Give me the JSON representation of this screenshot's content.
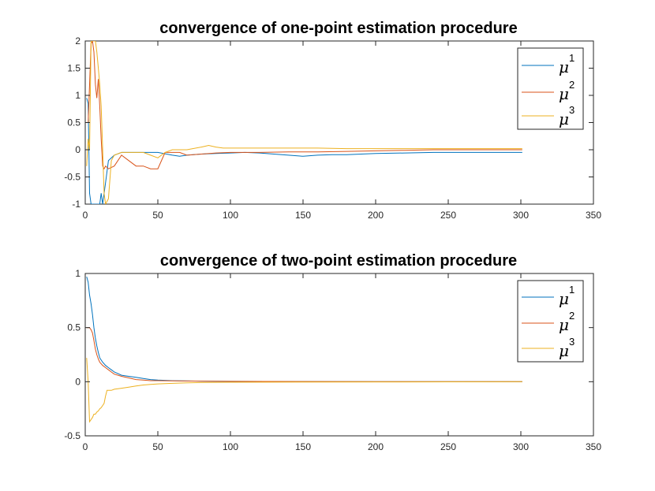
{
  "chart_data": [
    {
      "type": "line",
      "title": "convergence of one-point estimation procedure",
      "xlabel": "",
      "ylabel": "",
      "xlim": [
        0,
        350
      ],
      "ylim": [
        -1,
        2
      ],
      "xticks": [
        "0",
        "50",
        "100",
        "150",
        "200",
        "250",
        "300",
        "350"
      ],
      "yticks": [
        "-1",
        "-0.5",
        "0",
        "0.5",
        "1",
        "1.5",
        "2"
      ],
      "grid": false,
      "legend": "top-right",
      "series": [
        {
          "name": "μ",
          "sup": "1",
          "color": "#0072bd",
          "x": [
            1,
            2,
            3,
            4,
            5,
            6,
            7,
            8,
            9,
            10,
            11,
            12,
            14,
            16,
            20,
            25,
            30,
            35,
            40,
            50,
            60,
            65,
            70,
            80,
            90,
            100,
            110,
            120,
            130,
            140,
            150,
            160,
            170,
            180,
            190,
            200,
            220,
            240,
            260,
            280,
            301
          ],
          "y": [
            0.95,
            0.85,
            -0.8,
            -1,
            -1,
            -1,
            -1,
            -1,
            -1,
            -1,
            -0.8,
            -1,
            -0.6,
            -0.2,
            -0.1,
            -0.05,
            -0.05,
            -0.05,
            -0.05,
            -0.05,
            -0.1,
            -0.12,
            -0.1,
            -0.08,
            -0.07,
            -0.06,
            -0.05,
            -0.06,
            -0.08,
            -0.1,
            -0.12,
            -0.1,
            -0.09,
            -0.09,
            -0.08,
            -0.07,
            -0.06,
            -0.05,
            -0.05,
            -0.05,
            -0.05
          ]
        },
        {
          "name": "μ",
          "sup": "2",
          "color": "#d95319",
          "x": [
            1,
            2,
            3,
            4,
            5,
            6,
            7,
            8,
            9,
            10,
            11,
            12,
            13,
            14,
            16,
            20,
            25,
            30,
            35,
            40,
            45,
            50,
            55,
            60,
            65,
            70,
            80,
            90,
            100,
            120,
            140,
            160,
            180,
            200,
            220,
            240,
            260,
            280,
            301
          ],
          "y": [
            0.5,
            0.5,
            1.2,
            1.95,
            2,
            1.8,
            1.2,
            0.95,
            1.3,
            0.8,
            0.2,
            -0.3,
            -0.35,
            -0.3,
            -0.35,
            -0.3,
            -0.1,
            -0.2,
            -0.3,
            -0.3,
            -0.35,
            -0.35,
            -0.05,
            -0.05,
            -0.05,
            -0.1,
            -0.08,
            -0.06,
            -0.05,
            -0.05,
            -0.04,
            -0.04,
            -0.03,
            -0.02,
            -0.01,
            0,
            0,
            0,
            0
          ]
        },
        {
          "name": "μ",
          "sup": "3",
          "color": "#edb120",
          "x": [
            1,
            2,
            3,
            4,
            5,
            6,
            7,
            8,
            9,
            10,
            11,
            12,
            13,
            14,
            16,
            18,
            20,
            25,
            30,
            35,
            40,
            45,
            50,
            55,
            60,
            65,
            70,
            80,
            85,
            90,
            95,
            100,
            120,
            140,
            160,
            180,
            200,
            220,
            240,
            260,
            280,
            301
          ],
          "y": [
            -0.3,
            0.2,
            0,
            2,
            2,
            2,
            2,
            1.8,
            1.5,
            1.2,
            0.8,
            0,
            -0.8,
            -1,
            -0.9,
            -0.2,
            -0.1,
            -0.05,
            -0.05,
            -0.05,
            -0.05,
            -0.1,
            -0.15,
            -0.05,
            0,
            0,
            0,
            0.05,
            0.08,
            0.05,
            0.03,
            0.03,
            0.03,
            0.03,
            0.03,
            0.02,
            0.02,
            0.02,
            0.02,
            0.02,
            0.02,
            0.02
          ]
        }
      ]
    },
    {
      "type": "line",
      "title": "convergence of two-point estimation procedure",
      "xlabel": "",
      "ylabel": "",
      "xlim": [
        0,
        350
      ],
      "ylim": [
        -0.5,
        1
      ],
      "xticks": [
        "0",
        "50",
        "100",
        "150",
        "200",
        "250",
        "300",
        "350"
      ],
      "yticks": [
        "-0.5",
        "0",
        "0.5",
        "1"
      ],
      "grid": false,
      "legend": "top-right",
      "series": [
        {
          "name": "μ",
          "sup": "1",
          "color": "#0072bd",
          "x": [
            1,
            2,
            3,
            4,
            5,
            6,
            7,
            8,
            9,
            10,
            12,
            14,
            16,
            18,
            20,
            25,
            30,
            35,
            40,
            45,
            50,
            60,
            80,
            100,
            150,
            200,
            250,
            301
          ],
          "y": [
            0.97,
            0.92,
            0.8,
            0.72,
            0.62,
            0.5,
            0.4,
            0.33,
            0.27,
            0.22,
            0.18,
            0.15,
            0.13,
            0.11,
            0.09,
            0.06,
            0.05,
            0.04,
            0.03,
            0.02,
            0.015,
            0.01,
            0.005,
            0.003,
            0.002,
            0.001,
            0.001,
            0
          ]
        },
        {
          "name": "μ",
          "sup": "2",
          "color": "#d95319",
          "x": [
            1,
            2,
            3,
            4,
            5,
            6,
            7,
            8,
            9,
            10,
            12,
            14,
            16,
            18,
            20,
            25,
            30,
            35,
            40,
            45,
            50,
            60,
            80,
            100,
            150,
            200,
            250,
            301
          ],
          "y": [
            0.5,
            0.5,
            0.5,
            0.48,
            0.45,
            0.38,
            0.3,
            0.25,
            0.21,
            0.18,
            0.15,
            0.13,
            0.11,
            0.09,
            0.07,
            0.05,
            0.035,
            0.02,
            0.015,
            0.01,
            0.01,
            0.008,
            0.005,
            0.003,
            0.002,
            0.001,
            0.001,
            0
          ]
        },
        {
          "name": "μ",
          "sup": "3",
          "color": "#edb120",
          "x": [
            1,
            2,
            3,
            4,
            5,
            6,
            7,
            8,
            9,
            10,
            11,
            12,
            13,
            14,
            15,
            16,
            18,
            20,
            25,
            30,
            35,
            40,
            45,
            50,
            60,
            70,
            80,
            100,
            150,
            200,
            250,
            301
          ],
          "y": [
            0.22,
            0,
            -0.37,
            -0.35,
            -0.33,
            -0.3,
            -0.3,
            -0.28,
            -0.27,
            -0.25,
            -0.24,
            -0.22,
            -0.2,
            -0.13,
            -0.08,
            -0.08,
            -0.08,
            -0.07,
            -0.06,
            -0.05,
            -0.04,
            -0.03,
            -0.025,
            -0.02,
            -0.015,
            -0.01,
            -0.008,
            -0.005,
            -0.003,
            -0.002,
            -0.001,
            0
          ]
        }
      ]
    }
  ]
}
